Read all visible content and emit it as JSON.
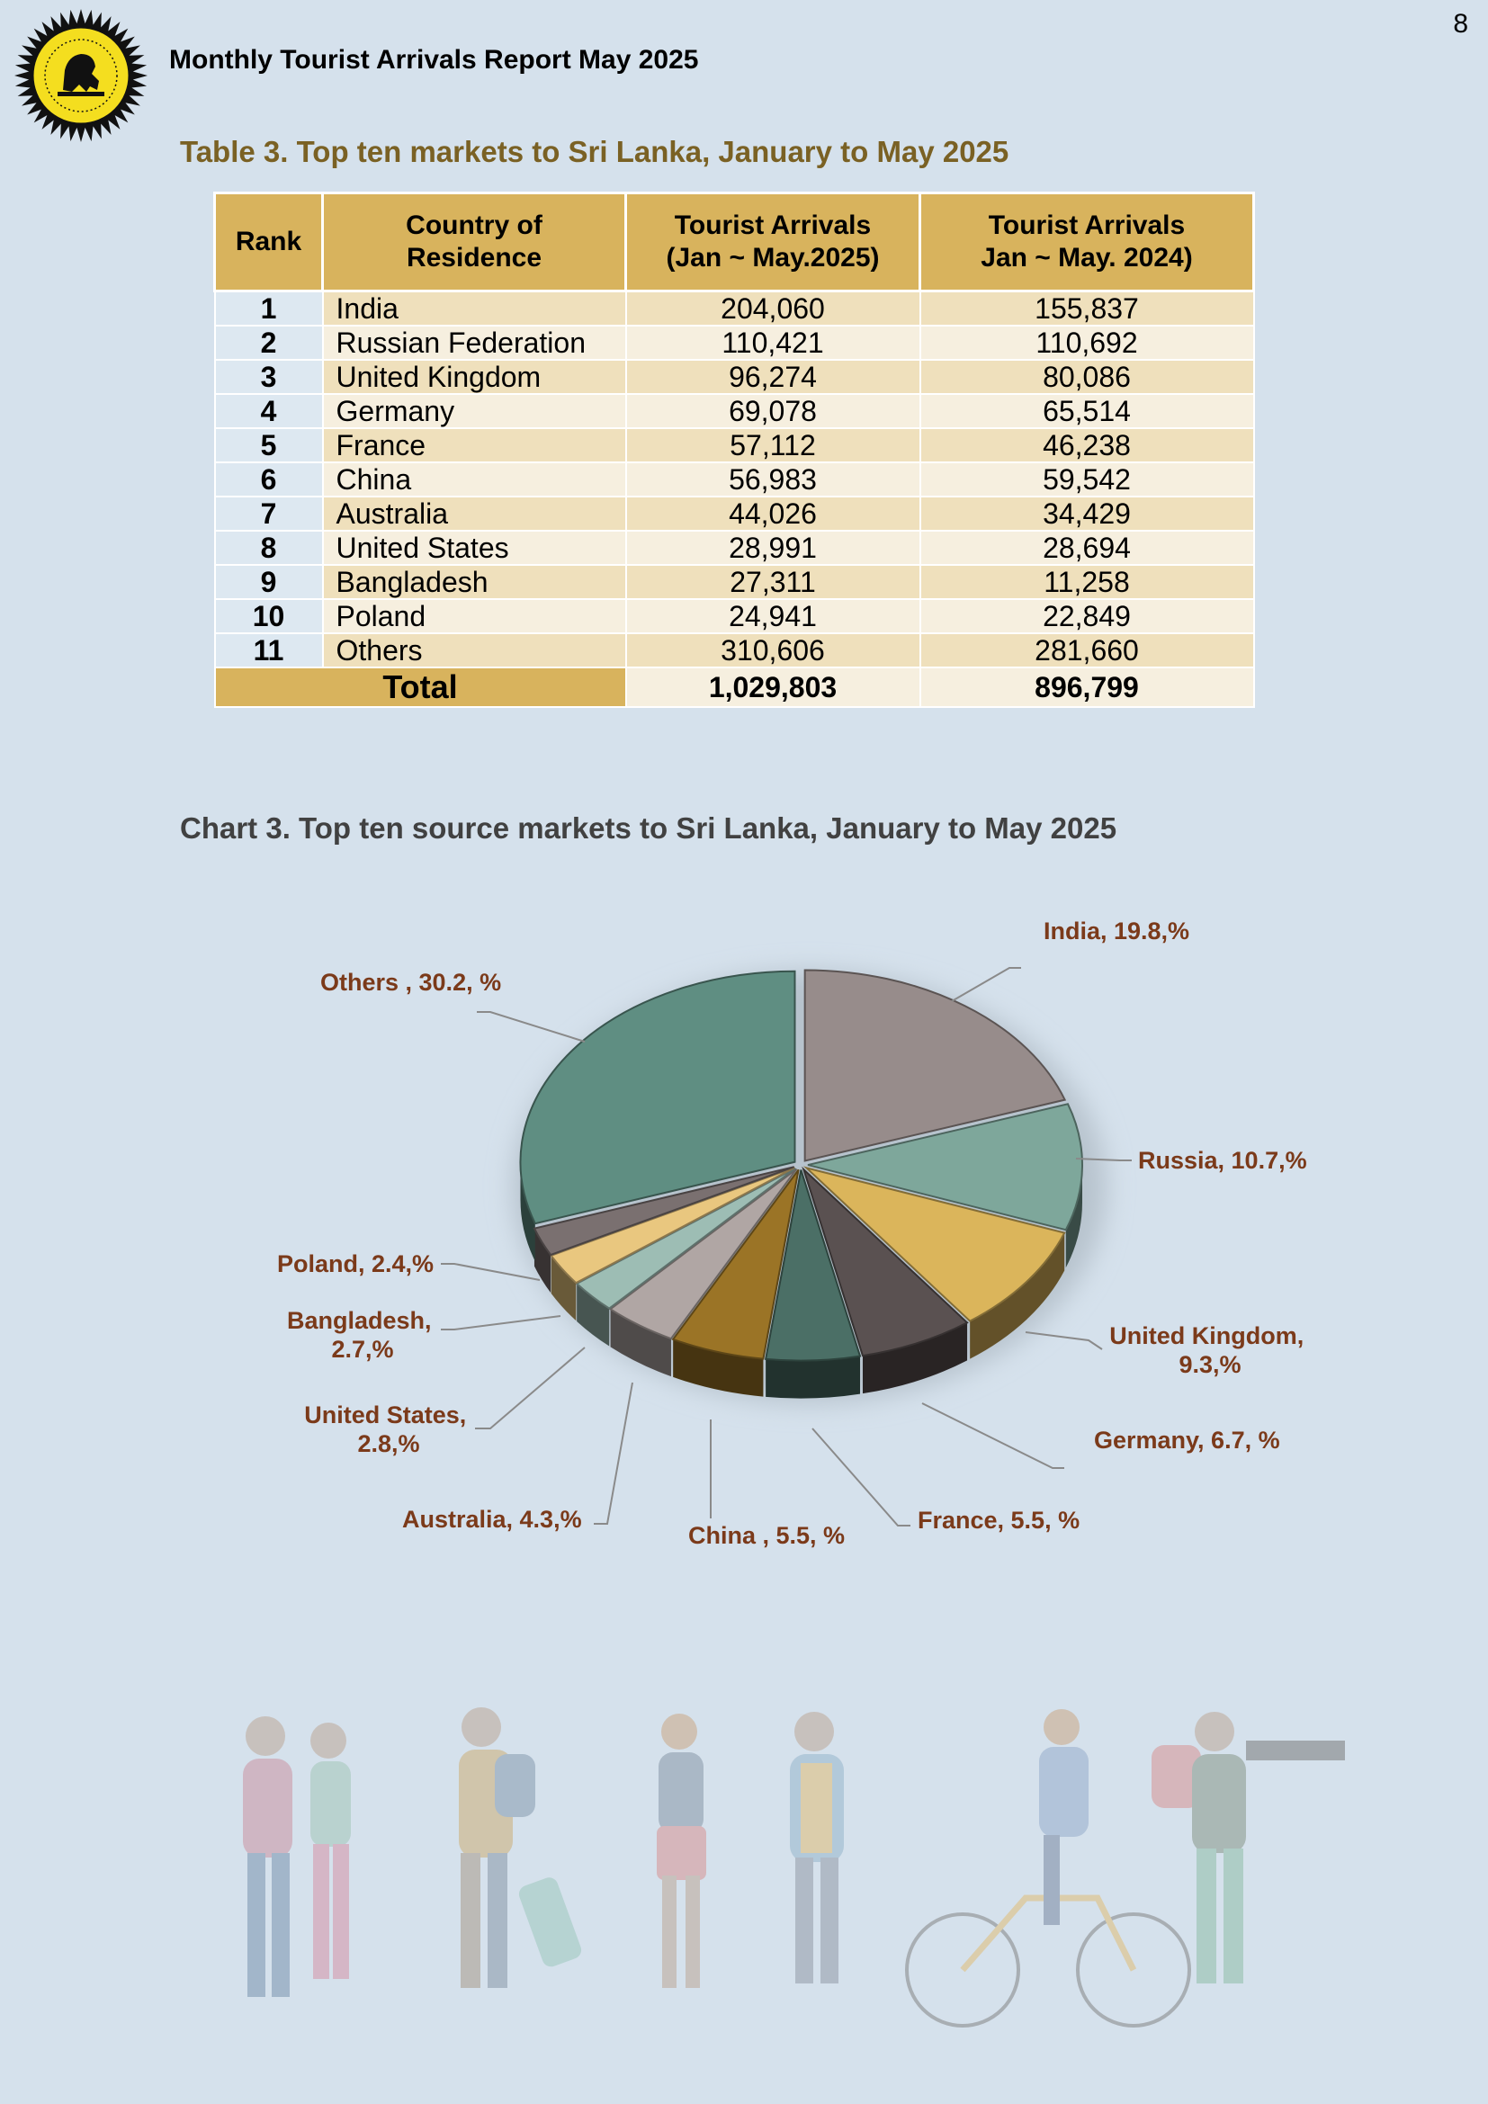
{
  "page_number": "8",
  "header": {
    "report_title": "Monthly Tourist Arrivals Report May 2025"
  },
  "table": {
    "title": "Table 3. Top ten markets to Sri Lanka, January to May 2025",
    "headers": {
      "rank": "Rank",
      "country": "Country of Residence",
      "col_2025": [
        "Tourist Arrivals",
        "(Jan ~ May.2025)"
      ],
      "col_2024": [
        "Tourist Arrivals",
        "Jan ~ May. 2024)"
      ]
    },
    "rows": [
      {
        "rank": "1",
        "country": "India",
        "y2025": "204,060",
        "y2024": "155,837"
      },
      {
        "rank": "2",
        "country": "Russian Federation",
        "y2025": "110,421",
        "y2024": "110,692"
      },
      {
        "rank": "3",
        "country": "United Kingdom",
        "y2025": "96,274",
        "y2024": "80,086"
      },
      {
        "rank": "4",
        "country": "Germany",
        "y2025": "69,078",
        "y2024": "65,514"
      },
      {
        "rank": "5",
        "country": "France",
        "y2025": "57,112",
        "y2024": "46,238"
      },
      {
        "rank": "6",
        "country": "China",
        "y2025": "56,983",
        "y2024": "59,542"
      },
      {
        "rank": "7",
        "country": "Australia",
        "y2025": "44,026",
        "y2024": "34,429"
      },
      {
        "rank": "8",
        "country": "United States",
        "y2025": "28,991",
        "y2024": "28,694"
      },
      {
        "rank": "9",
        "country": "Bangladesh",
        "y2025": "27,311",
        "y2024": "11,258"
      },
      {
        "rank": "10",
        "country": "Poland",
        "y2025": "24,941",
        "y2024": "22,849"
      },
      {
        "rank": "11",
        "country": "Others",
        "y2025": "310,606",
        "y2024": "281,660"
      }
    ],
    "total": {
      "label": "Total",
      "y2025": "1,029,803",
      "y2024": "896,799"
    }
  },
  "chart_title": "Chart 3. Top ten source markets to Sri Lanka, January to May 2025",
  "chart_data": {
    "type": "pie",
    "title": "Chart 3. Top ten source markets to Sri Lanka, January to May 2025",
    "slices": [
      {
        "name": "India",
        "value": 19.8,
        "color": "#978c8b",
        "label_lines": [
          "India, 19.8,%"
        ]
      },
      {
        "name": "Russia",
        "value": 10.7,
        "color": "#7ea79b",
        "label_lines": [
          "Russia, 10.7,%"
        ]
      },
      {
        "name": "United Kingdom",
        "value": 9.3,
        "color": "#dbb55b",
        "label_lines": [
          "United Kingdom,",
          "9.3,%"
        ]
      },
      {
        "name": "Germany",
        "value": 6.7,
        "color": "#5a5151",
        "label_lines": [
          "Germany, 6.7, %"
        ]
      },
      {
        "name": "France",
        "value": 5.5,
        "color": "#4b6f66",
        "label_lines": [
          "France, 5.5, %"
        ]
      },
      {
        "name": "China",
        "value": 5.5,
        "color": "#9b7426",
        "label_lines": [
          "China , 5.5, %"
        ]
      },
      {
        "name": "Australia",
        "value": 4.3,
        "color": "#b0a6a4",
        "label_lines": [
          "Australia, 4.3,%"
        ]
      },
      {
        "name": "United States",
        "value": 2.8,
        "color": "#9dbdb4",
        "label_lines": [
          "United States,",
          "2.8,%"
        ]
      },
      {
        "name": "Bangladesh",
        "value": 2.7,
        "color": "#e9c77f",
        "label_lines": [
          "Bangladesh,",
          "2.7,%"
        ]
      },
      {
        "name": "Poland",
        "value": 2.4,
        "color": "#7a7070",
        "label_lines": [
          "Poland, 2.4,%"
        ]
      },
      {
        "name": "Others",
        "value": 30.2,
        "color": "#5f8e82",
        "label_lines": [
          "Others , 30.2, %"
        ]
      }
    ]
  },
  "colors": {
    "background": "#d5e1ec",
    "table_header": "#d8b35d",
    "row_dark": "#efe0bc",
    "row_light": "#f6efdf",
    "table_title": "#7a6124",
    "pie_label": "#7b3a1a"
  },
  "icons": [
    "sri-lanka-tourism-logo",
    "travelers-illustration"
  ]
}
